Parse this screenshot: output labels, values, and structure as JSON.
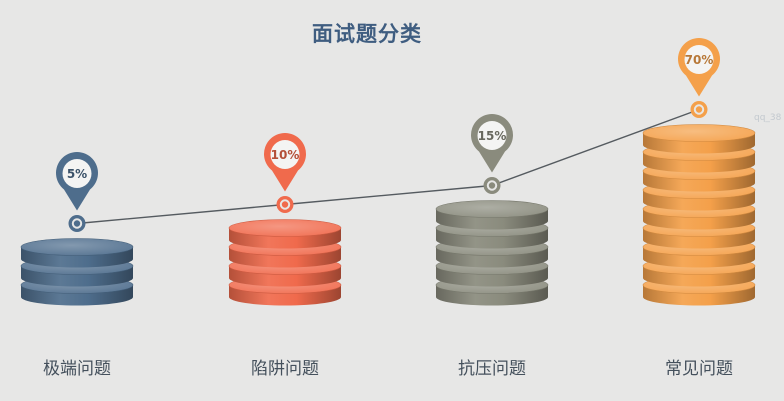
{
  "chart_data": {
    "type": "bar",
    "title": "面试题分类",
    "categories": [
      "极端问题",
      "陷阱问题",
      "抗压问题",
      "常见问题"
    ],
    "values": [
      5,
      10,
      15,
      70
    ],
    "labels": [
      "5%",
      "10%",
      "15%",
      "70%"
    ],
    "unit": "%",
    "colors": [
      "#4e6d8c",
      "#f06a4c",
      "#8a8b7d",
      "#f4a04a"
    ],
    "grid": false,
    "legend": "none"
  },
  "watermark": "qq_38"
}
